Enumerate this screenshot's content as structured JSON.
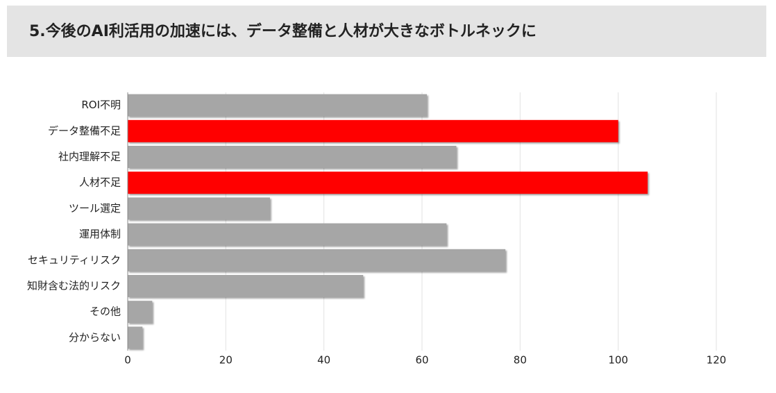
{
  "chart_data": {
    "type": "bar",
    "orientation": "horizontal",
    "title": "5.今後のAI利活用の加速には、データ整備と人材が大きなボトルネックに",
    "categories": [
      "ROI不明",
      "データ整備不足",
      "社内理解不足",
      "人材不足",
      "ツール選定",
      "運用体制",
      "セキュリティリスク",
      "知財含む法的リスク",
      "その他",
      "分からない"
    ],
    "values": [
      61,
      100,
      67,
      106,
      29,
      65,
      77,
      48,
      5,
      3
    ],
    "colors": [
      "#a6a6a6",
      "#ff0000",
      "#a6a6a6",
      "#ff0000",
      "#a6a6a6",
      "#a6a6a6",
      "#a6a6a6",
      "#a6a6a6",
      "#a6a6a6",
      "#a6a6a6"
    ],
    "xlim": [
      0,
      120
    ],
    "xticks": [
      0,
      20,
      40,
      60,
      80,
      100,
      120
    ],
    "grid": true
  }
}
